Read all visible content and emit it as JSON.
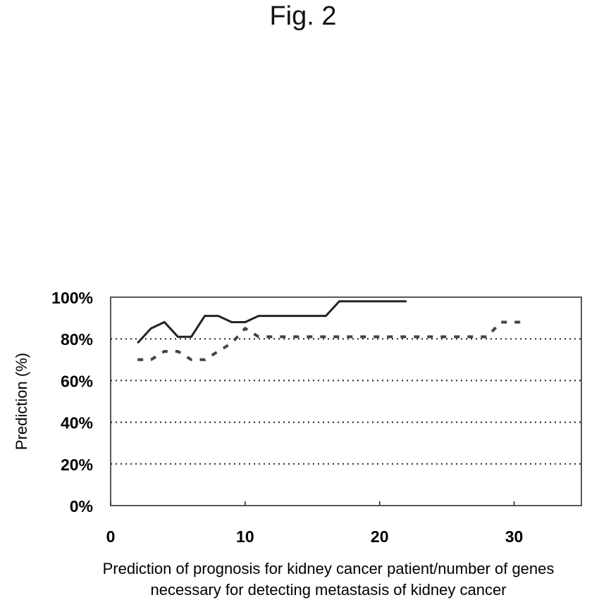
{
  "figure": {
    "title": "Fig. 2"
  },
  "chart_data": {
    "type": "line",
    "xlabel": "Prediction of prognosis for kidney cancer patient/number of genes necessary for detecting metastasis of kidney cancer",
    "xlabel_lines": [
      "Prediction of prognosis for kidney cancer patient/number of genes",
      "necessary for detecting metastasis of kidney cancer"
    ],
    "ylabel": "Prediction (%)",
    "xlim": [
      0,
      35
    ],
    "ylim": [
      0,
      100
    ],
    "x_ticks": [
      0,
      10,
      20,
      30
    ],
    "x_tick_labels": [
      "0",
      "10",
      "20",
      "30"
    ],
    "y_ticks": [
      0,
      20,
      40,
      60,
      80,
      100
    ],
    "y_tick_labels": [
      "0%",
      "20%",
      "40%",
      "60%",
      "80%",
      "100%"
    ],
    "grid": {
      "y": "dotted",
      "x": false
    },
    "legend": "none",
    "series": [
      {
        "style": "solid",
        "color": "#222222",
        "x": [
          2,
          3,
          4,
          5,
          6,
          7,
          8,
          9,
          10,
          11,
          12,
          13,
          14,
          15,
          16,
          17,
          18,
          19,
          20,
          21,
          22
        ],
        "y": [
          78,
          85,
          88,
          81,
          81,
          91,
          91,
          88,
          88,
          91,
          91,
          91,
          91,
          91,
          91,
          98,
          98,
          98,
          98,
          98,
          98
        ]
      },
      {
        "style": "dashed",
        "color": "#444444",
        "x": [
          2,
          3,
          4,
          5,
          6,
          7,
          8,
          9,
          10,
          11,
          12,
          13,
          14,
          15,
          16,
          17,
          18,
          19,
          20,
          21,
          22,
          23,
          24,
          25,
          26,
          27,
          28,
          29,
          30,
          31
        ],
        "y": [
          70,
          70,
          74,
          74,
          70,
          70,
          74,
          78,
          85,
          81,
          81,
          81,
          81,
          81,
          81,
          81,
          81,
          81,
          81,
          81,
          81,
          81,
          81,
          81,
          81,
          81,
          81,
          88,
          88,
          88
        ]
      }
    ]
  }
}
